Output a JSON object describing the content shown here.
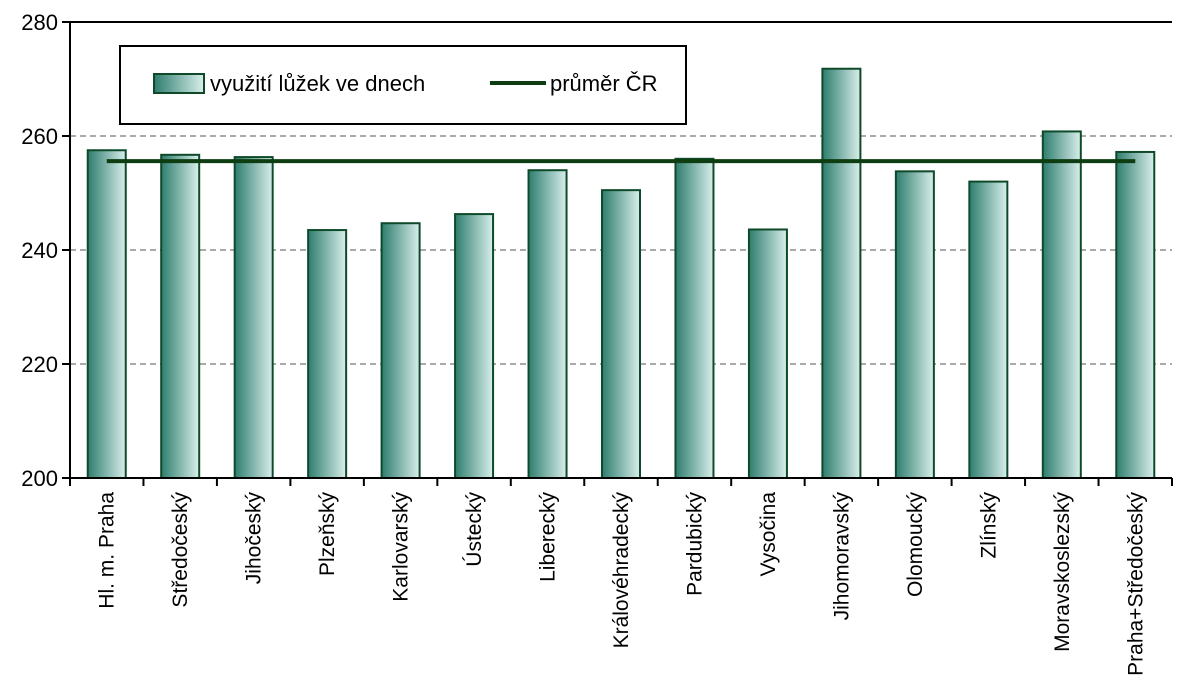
{
  "colors": {
    "bar_dark": "#2e7d6e",
    "bar_light": "#d9efeb",
    "bar_stroke": "#0e4a2a",
    "avg_line": "#0d3d10",
    "axis": "#000000",
    "grid": "#555555"
  },
  "chart_data": {
    "type": "bar",
    "title": "",
    "xlabel": "",
    "ylabel": "",
    "ylim": [
      200,
      280
    ],
    "yticks": [
      200,
      220,
      240,
      260,
      280
    ],
    "grid": true,
    "legend_position": "top-left",
    "categories": [
      "Hl. m. Praha",
      "Středočeský",
      "Jihočeský",
      "Plzeňský",
      "Karlovarský",
      "Ústecký",
      "Liberecký",
      "Královéhradecký",
      "Pardubický",
      "Vysočina",
      "Jihomoravský",
      "Olomoucký",
      "Zlínský",
      "Moravskoslezský",
      "Praha+Středočeský"
    ],
    "series": [
      {
        "name": "využití lůžek ve dnech",
        "type": "bar",
        "values": [
          257.5,
          256.7,
          256.3,
          243.5,
          244.7,
          246.3,
          254.0,
          250.5,
          256.0,
          243.6,
          271.8,
          253.8,
          252.0,
          260.8,
          257.2
        ]
      },
      {
        "name": "průměr ČR",
        "type": "line",
        "value": 255.6
      }
    ]
  }
}
